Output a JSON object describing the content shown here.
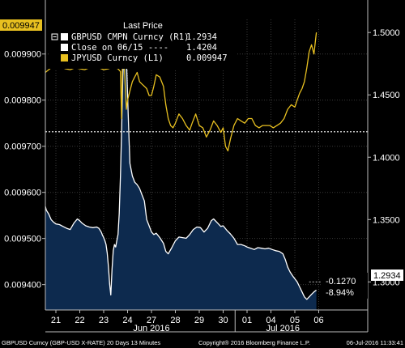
{
  "chart_data": {
    "type": "line",
    "title": "",
    "legend": {
      "title": "Last Price",
      "placement": "top-left",
      "entries": [
        {
          "label": "GBPUSD CMPN Curncy  (R1)",
          "value": "1.2934",
          "swatch": "#ffffff"
        },
        {
          "label": "Close on 06/15 ----",
          "value": "1.4204",
          "swatch": "#ffffff"
        },
        {
          "label": "JPYUSD Curncy  (L1)",
          "value": "0.009947",
          "swatch": "#e8c020"
        }
      ]
    },
    "x_ticks": [
      {
        "label": "21",
        "pos": 0
      },
      {
        "label": "22",
        "pos": 1
      },
      {
        "label": "23",
        "pos": 2
      },
      {
        "label": "24",
        "pos": 3
      },
      {
        "label": "27",
        "pos": 4
      },
      {
        "label": "28",
        "pos": 5
      },
      {
        "label": "29",
        "pos": 6
      },
      {
        "label": "30",
        "pos": 7
      },
      {
        "label": "01",
        "pos": 8
      },
      {
        "label": "04",
        "pos": 9
      },
      {
        "label": "05",
        "pos": 10
      },
      {
        "label": "06",
        "pos": 11
      }
    ],
    "x_months": [
      {
        "label": "Jun 2016",
        "pos": 4
      },
      {
        "label": "Jul 2016",
        "pos": 9.5
      }
    ],
    "left_axis": {
      "ticks": [
        "0.009400",
        "0.009500",
        "0.009600",
        "0.009700",
        "0.009800",
        "0.009900"
      ],
      "tick_values": [
        0.0094,
        0.0095,
        0.0096,
        0.0097,
        0.0098,
        0.0099
      ],
      "ylim": [
        0.009345,
        0.009975
      ]
    },
    "right_axis": {
      "ticks": [
        "1.3000",
        "1.3500",
        "1.4000",
        "1.4500",
        "1.5000"
      ],
      "tick_values": [
        1.3,
        1.35,
        1.4,
        1.45,
        1.5
      ],
      "ylim": [
        1.2775,
        1.5105
      ]
    },
    "series": [
      {
        "name": "GBPUSD CMPN Curncy",
        "axis": "right",
        "color": "#ffffff",
        "fill": "#0d2a4e",
        "points": [
          [
            -0.5,
            1.3605
          ],
          [
            -0.4,
            1.3575
          ],
          [
            -0.3,
            1.3545
          ],
          [
            -0.2,
            1.35
          ],
          [
            -0.1,
            1.348
          ],
          [
            0.0,
            1.3465
          ],
          [
            0.15,
            1.346
          ],
          [
            0.3,
            1.3445
          ],
          [
            0.45,
            1.343
          ],
          [
            0.6,
            1.342
          ],
          [
            0.75,
            1.347
          ],
          [
            0.9,
            1.3505
          ],
          [
            1.0,
            1.349
          ],
          [
            1.1,
            1.347
          ],
          [
            1.25,
            1.345
          ],
          [
            1.4,
            1.344
          ],
          [
            1.55,
            1.3435
          ],
          [
            1.7,
            1.344
          ],
          [
            1.8,
            1.343
          ],
          [
            1.9,
            1.34
          ],
          [
            1.95,
            1.3375
          ],
          [
            2.0,
            1.3355
          ],
          [
            2.05,
            1.333
          ],
          [
            2.1,
            1.33
          ],
          [
            2.15,
            1.323
          ],
          [
            2.2,
            1.312
          ],
          [
            2.25,
            1.298
          ],
          [
            2.3,
            1.2895
          ],
          [
            2.35,
            1.31
          ],
          [
            2.4,
            1.325
          ],
          [
            2.45,
            1.33
          ],
          [
            2.5,
            1.328
          ],
          [
            2.55,
            1.333
          ],
          [
            2.6,
            1.338
          ],
          [
            2.65,
            1.355
          ],
          [
            2.7,
            1.385
          ],
          [
            2.75,
            1.42
          ],
          [
            2.8,
            1.465
          ],
          [
            2.85,
            1.485
          ],
          [
            2.9,
            1.492
          ],
          [
            2.95,
            1.48
          ],
          [
            3.0,
            1.45
          ],
          [
            3.05,
            1.42
          ],
          [
            3.1,
            1.395
          ],
          [
            3.2,
            1.385
          ],
          [
            3.3,
            1.38
          ],
          [
            3.4,
            1.378
          ],
          [
            3.5,
            1.375
          ],
          [
            3.6,
            1.37
          ],
          [
            3.7,
            1.365
          ],
          [
            3.8,
            1.35
          ],
          [
            3.9,
            1.345
          ],
          [
            4.0,
            1.34
          ],
          [
            4.1,
            1.338
          ],
          [
            4.2,
            1.339
          ],
          [
            4.35,
            1.3355
          ],
          [
            4.5,
            1.331
          ],
          [
            4.6,
            1.3245
          ],
          [
            4.7,
            1.3225
          ],
          [
            4.85,
            1.3275
          ],
          [
            5.0,
            1.333
          ],
          [
            5.15,
            1.336
          ],
          [
            5.3,
            1.3355
          ],
          [
            5.45,
            1.335
          ],
          [
            5.6,
            1.338
          ],
          [
            5.75,
            1.342
          ],
          [
            5.9,
            1.344
          ],
          [
            6.05,
            1.3435
          ],
          [
            6.2,
            1.34
          ],
          [
            6.35,
            1.343
          ],
          [
            6.5,
            1.349
          ],
          [
            6.6,
            1.3505
          ],
          [
            6.75,
            1.3475
          ],
          [
            6.9,
            1.3445
          ],
          [
            7.0,
            1.345
          ],
          [
            7.15,
            1.3415
          ],
          [
            7.3,
            1.3385
          ],
          [
            7.45,
            1.335
          ],
          [
            7.6,
            1.33
          ],
          [
            7.75,
            1.33
          ],
          [
            7.9,
            1.329
          ],
          [
            8.0,
            1.328
          ],
          [
            8.15,
            1.327
          ],
          [
            8.3,
            1.326
          ],
          [
            8.45,
            1.3275
          ],
          [
            8.6,
            1.327
          ],
          [
            8.75,
            1.3265
          ],
          [
            8.9,
            1.327
          ],
          [
            9.05,
            1.326
          ],
          [
            9.2,
            1.325
          ],
          [
            9.35,
            1.3245
          ],
          [
            9.5,
            1.3225
          ],
          [
            9.6,
            1.318
          ],
          [
            9.7,
            1.312
          ],
          [
            9.8,
            1.308
          ],
          [
            9.9,
            1.305
          ],
          [
            10.0,
            1.3025
          ],
          [
            10.1,
            1.3
          ],
          [
            10.2,
            1.296
          ],
          [
            10.3,
            1.292
          ],
          [
            10.4,
            1.288
          ],
          [
            10.5,
            1.286
          ],
          [
            10.6,
            1.288
          ],
          [
            10.7,
            1.29
          ],
          [
            10.8,
            1.292
          ],
          [
            10.9,
            1.2934
          ]
        ]
      },
      {
        "name": "JPYUSD Curncy",
        "axis": "left",
        "color": "#e8c020",
        "points": [
          [
            -0.5,
            0.00986
          ],
          [
            -0.2,
            0.00987
          ],
          [
            0.0,
            0.00987
          ],
          [
            0.2,
            0.009872
          ],
          [
            0.4,
            0.009868
          ],
          [
            0.6,
            0.009866
          ],
          [
            0.8,
            0.00987
          ],
          [
            1.0,
            0.009868
          ],
          [
            1.2,
            0.009866
          ],
          [
            1.4,
            0.00987
          ],
          [
            1.6,
            0.009875
          ],
          [
            1.8,
            0.00987
          ],
          [
            2.0,
            0.009866
          ],
          [
            2.2,
            0.009868
          ],
          [
            2.4,
            0.009872
          ],
          [
            2.6,
            0.009868
          ],
          [
            2.7,
            0.009862
          ],
          [
            2.75,
            0.00976
          ],
          [
            2.8,
            0.00993
          ],
          [
            2.85,
            0.00989
          ],
          [
            2.9,
            0.00983
          ],
          [
            2.95,
            0.00978
          ],
          [
            3.0,
            0.0098
          ],
          [
            3.1,
            0.00982
          ],
          [
            3.2,
            0.00984
          ],
          [
            3.3,
            0.00985
          ],
          [
            3.4,
            0.00986
          ],
          [
            3.5,
            0.00984
          ],
          [
            3.6,
            0.009835
          ],
          [
            3.7,
            0.00983
          ],
          [
            3.8,
            0.009825
          ],
          [
            3.9,
            0.00981
          ],
          [
            4.0,
            0.00981
          ],
          [
            4.1,
            0.00983
          ],
          [
            4.2,
            0.009855
          ],
          [
            4.35,
            0.00985
          ],
          [
            4.5,
            0.00983
          ],
          [
            4.6,
            0.00979
          ],
          [
            4.7,
            0.00976
          ],
          [
            4.8,
            0.009745
          ],
          [
            4.9,
            0.00974
          ],
          [
            5.0,
            0.00975
          ],
          [
            5.15,
            0.00977
          ],
          [
            5.3,
            0.00976
          ],
          [
            5.45,
            0.009745
          ],
          [
            5.6,
            0.009735
          ],
          [
            5.7,
            0.00975
          ],
          [
            5.85,
            0.00977
          ],
          [
            6.0,
            0.009745
          ],
          [
            6.15,
            0.00974
          ],
          [
            6.3,
            0.00972
          ],
          [
            6.45,
            0.009735
          ],
          [
            6.6,
            0.009755
          ],
          [
            6.75,
            0.009745
          ],
          [
            6.9,
            0.00973
          ],
          [
            7.0,
            0.00974
          ],
          [
            7.1,
            0.0097
          ],
          [
            7.2,
            0.00969
          ],
          [
            7.3,
            0.009715
          ],
          [
            7.45,
            0.009745
          ],
          [
            7.6,
            0.00976
          ],
          [
            7.75,
            0.009755
          ],
          [
            7.9,
            0.00975
          ],
          [
            8.05,
            0.00976
          ],
          [
            8.2,
            0.00976
          ],
          [
            8.35,
            0.009745
          ],
          [
            8.5,
            0.00974
          ],
          [
            8.65,
            0.009745
          ],
          [
            8.8,
            0.009745
          ],
          [
            8.95,
            0.009745
          ],
          [
            9.1,
            0.00974
          ],
          [
            9.25,
            0.009745
          ],
          [
            9.4,
            0.00975
          ],
          [
            9.55,
            0.00976
          ],
          [
            9.7,
            0.00978
          ],
          [
            9.85,
            0.00979
          ],
          [
            10.0,
            0.009785
          ],
          [
            10.1,
            0.0098
          ],
          [
            10.2,
            0.009815
          ],
          [
            10.3,
            0.009825
          ],
          [
            10.4,
            0.00984
          ],
          [
            10.5,
            0.00987
          ],
          [
            10.6,
            0.009905
          ],
          [
            10.7,
            0.00992
          ],
          [
            10.8,
            0.0099
          ],
          [
            10.9,
            0.009947
          ]
        ]
      }
    ],
    "close_line": {
      "label": "Close on 06/15",
      "value": 1.4204,
      "axis": "right",
      "color": "#ffffff"
    },
    "callouts": {
      "jpy_last": {
        "text": "0.009947",
        "bg": "#e8c020",
        "fg": "#000000"
      },
      "gbp_last": {
        "text": "1.2934",
        "bg": "#ffffff",
        "fg": "#000000"
      },
      "ref_1500": {
        "text": "1.5000"
      },
      "change": "-0.1270",
      "change_pct": "-8.94%"
    },
    "footer": {
      "left": "GBPUSD Curncy (GBP-USD X-RATE) 20 Days 13 Minutes",
      "center": "Copyright® 2016 Bloomberg Finance L.P.",
      "right": "06-Jul-2016 11:33:41"
    },
    "grid": true
  }
}
